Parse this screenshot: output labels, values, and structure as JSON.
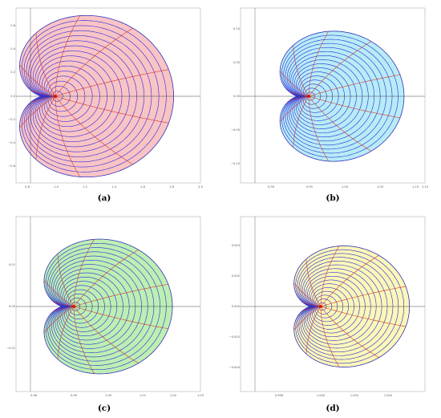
{
  "panels": [
    {
      "caption": "(a)",
      "fill": "#f9c4c6",
      "x_ticks": [
        "0.8",
        "1.0",
        "1.2",
        "1.4",
        "1.6",
        "1.8",
        "2.0"
      ],
      "y_ticks": [
        "0.6",
        "0.4",
        "0.2",
        "0.0",
        "−0.2",
        "−0.4",
        "−0.6"
      ]
    },
    {
      "caption": "(b)",
      "fill": "#b7ecf7",
      "x_ticks": [
        "0.90",
        "0.95",
        "1.00",
        "1.05",
        "1.10",
        "1.15"
      ],
      "y_ticks": [
        "0.10",
        "0.05",
        "0.00",
        "−0.05",
        "−0.10"
      ]
    },
    {
      "caption": "(c)",
      "fill": "#bdefb3",
      "x_ticks": [
        "0.98",
        "0.99",
        "1.00",
        "1.01",
        "1.02",
        "1.03"
      ],
      "y_ticks": [
        "0.01",
        "0.00",
        "−0.01"
      ]
    },
    {
      "caption": "(d)",
      "fill": "#fbf7b8",
      "x_ticks": [
        "0.998",
        "1.000",
        "1.002",
        "1.004"
      ],
      "y_ticks": [
        "0.004",
        "0.002",
        "0.000",
        "−0.002",
        "−0.004"
      ]
    }
  ],
  "colors": {
    "level_curves": "#2a2ad8",
    "radial_lines": "#d43a2a",
    "boundary": "#55555f",
    "axes": "#444444",
    "center_dot": "#e00000"
  }
}
